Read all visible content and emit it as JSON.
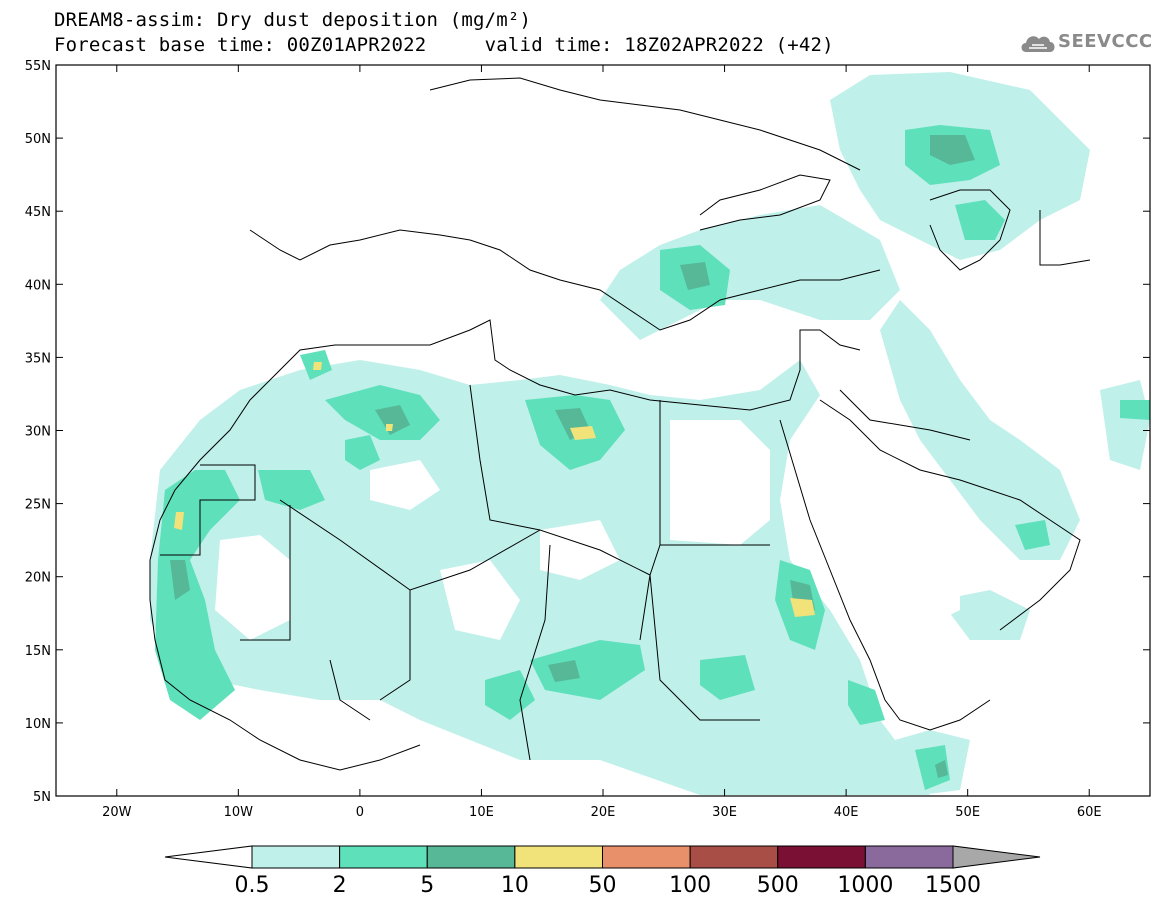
{
  "header": {
    "title_line1": "DREAM8-assim: Dry dust deposition (mg/m²)",
    "title_line2": "Forecast base time: 00Z01APR2022     valid time: 18Z02APR2022 (+42)",
    "logo_text": "SEEVCCC",
    "logo_icon": "cloud-logo-icon"
  },
  "map": {
    "lat_labels": [
      "55N",
      "50N",
      "45N",
      "40N",
      "35N",
      "30N",
      "25N",
      "20N",
      "15N",
      "10N",
      "5N"
    ],
    "lon_labels": [
      "20W",
      "10W",
      "0",
      "10E",
      "20E",
      "30E",
      "40E",
      "50E",
      "60E"
    ],
    "lon_range": [
      -25,
      65
    ],
    "lat_range": [
      5,
      55
    ]
  },
  "colorbar": {
    "labels": [
      "0.5",
      "2",
      "5",
      "10",
      "50",
      "100",
      "500",
      "1000",
      "1500"
    ],
    "colors": [
      "#bff0ea",
      "#5ee0bb",
      "#56b896",
      "#f2e27a",
      "#e8906a",
      "#a84e46",
      "#7a1034",
      "#8a6a9c"
    ],
    "under_color": "#ffffff",
    "over_color": "#a8a8a8"
  },
  "colors": {
    "level1": "#bff0ea",
    "level2": "#5ee0bb",
    "level3": "#56b896",
    "level4": "#f2e27a"
  }
}
